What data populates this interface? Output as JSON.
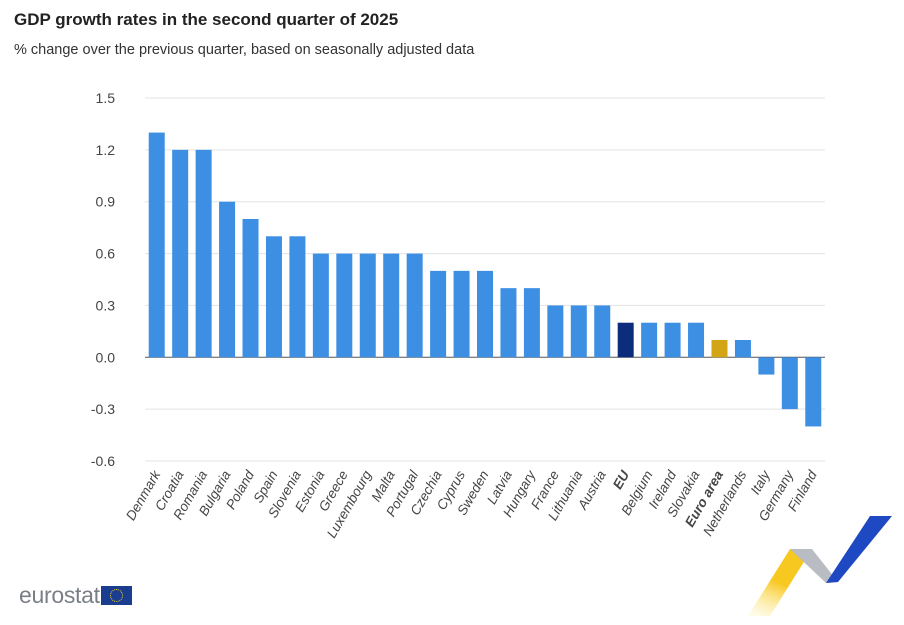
{
  "chart_data": {
    "type": "bar",
    "title": "GDP growth rates in the second quarter of 2025",
    "subtitle": "% change over the previous quarter, based on seasonally adjusted data",
    "categories": [
      "Denmark",
      "Croatia",
      "Romania",
      "Bulgaria",
      "Poland",
      "Spain",
      "Slovenia",
      "Estonia",
      "Greece",
      "Luxembourg",
      "Malta",
      "Portugal",
      "Czechia",
      "Cyprus",
      "Sweden",
      "Latvia",
      "Hungary",
      "France",
      "Lithuania",
      "Austria",
      "EU",
      "Belgium",
      "Ireland",
      "Slovakia",
      "Euro area",
      "Netherlands",
      "Italy",
      "Germany",
      "Finland"
    ],
    "values": [
      1.3,
      1.2,
      1.2,
      0.9,
      0.8,
      0.7,
      0.7,
      0.6,
      0.6,
      0.6,
      0.6,
      0.6,
      0.5,
      0.5,
      0.5,
      0.4,
      0.4,
      0.3,
      0.3,
      0.3,
      0.2,
      0.2,
      0.2,
      0.2,
      0.1,
      0.1,
      -0.1,
      -0.3,
      -0.4
    ],
    "highlighted": {
      "EU": "#0c2c7c",
      "Euro area": "#d2a516"
    },
    "bar_color": "#3d8fe4",
    "ylim": [
      -0.6,
      1.5
    ],
    "yticks": [
      "1.5",
      "1.2",
      "0.9",
      "0.6",
      "0.3",
      "0.0",
      "-0.3",
      "-0.6"
    ],
    "grid": true,
    "xlabel": "",
    "ylabel": ""
  },
  "logo": {
    "text": "eurostat"
  }
}
